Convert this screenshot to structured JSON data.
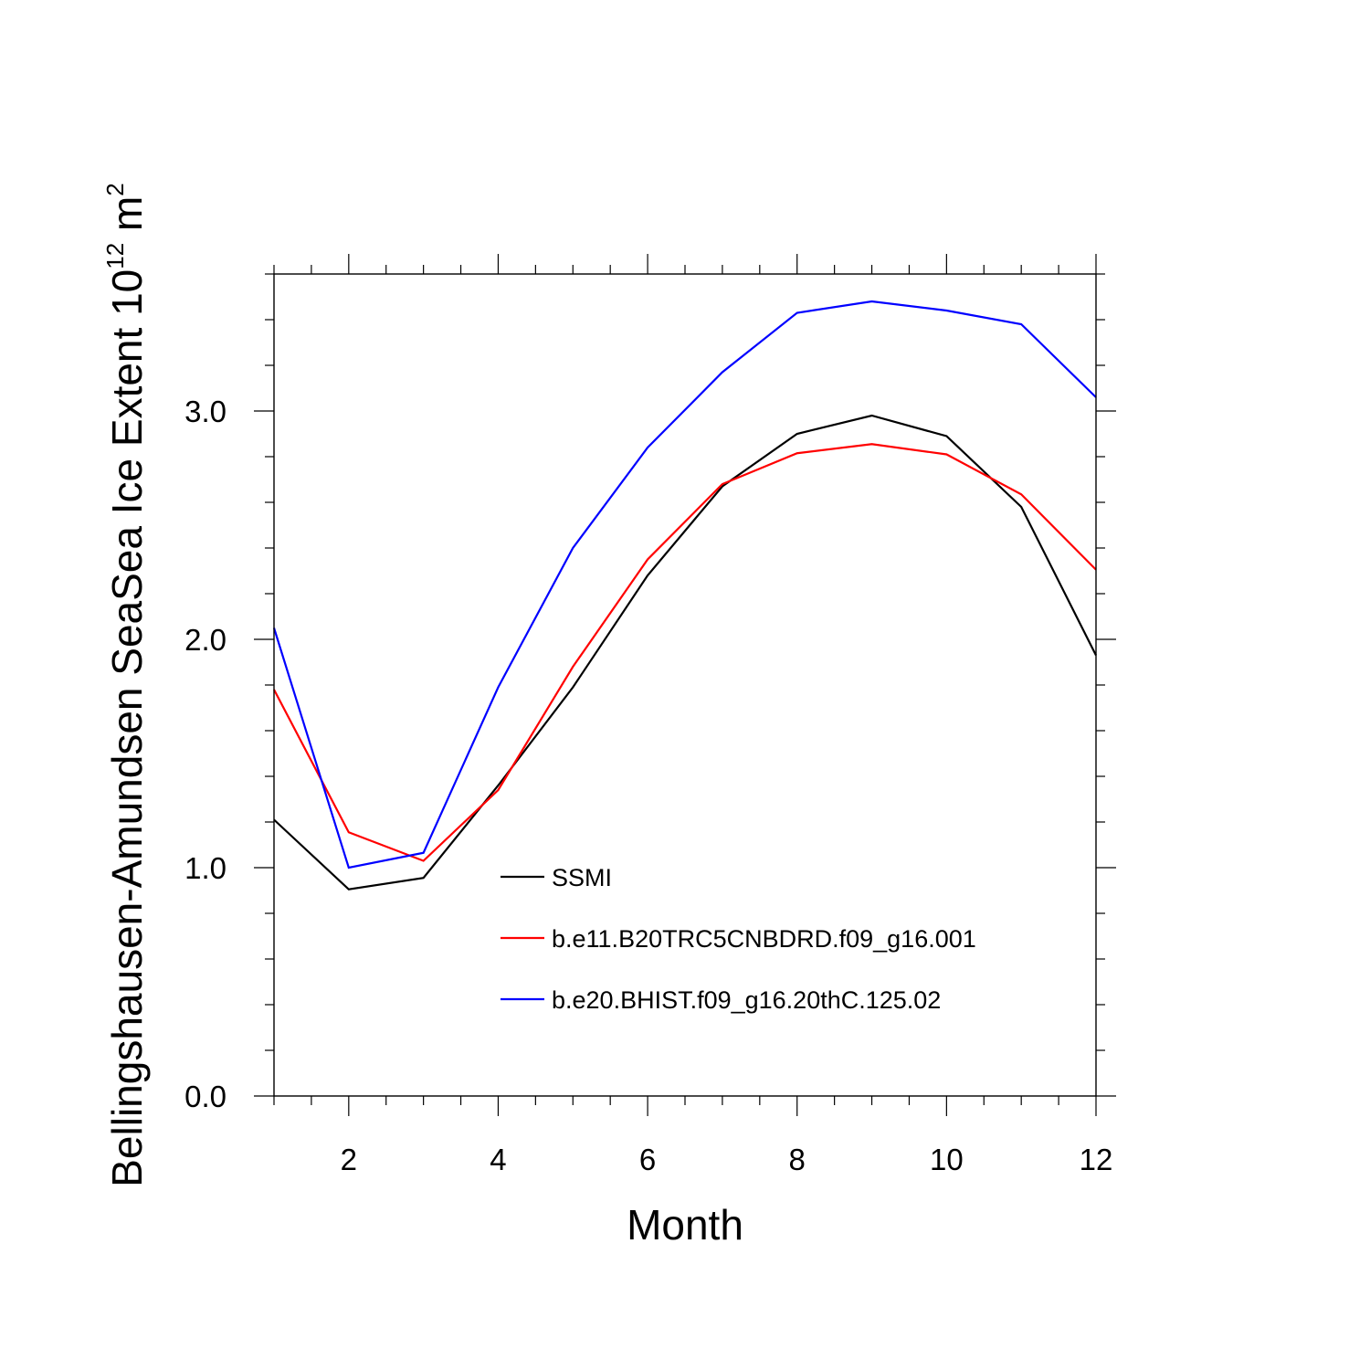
{
  "chart_data": {
    "type": "line",
    "title": "",
    "xlabel": "Month",
    "ylabel": "Bellingshausen-Amundsen SeaSea Ice Extent 10",
    "ylabel_exponent": "12",
    "ylabel_unit": "m",
    "ylabel_unit_exponent": "2",
    "x": [
      1,
      2,
      3,
      4,
      5,
      6,
      7,
      8,
      9,
      10,
      11,
      12
    ],
    "xlim": [
      1,
      12
    ],
    "ylim": [
      0,
      3.6
    ],
    "xticks": [
      2,
      4,
      6,
      8,
      10,
      12
    ],
    "xtick_labels": [
      "2",
      "4",
      "6",
      "8",
      "10",
      "12"
    ],
    "yticks": [
      0,
      1,
      2,
      3
    ],
    "ytick_labels": [
      "0.0",
      "1.0",
      "2.0",
      "3.0"
    ],
    "legend_position": "inside-lower-center",
    "grid": false,
    "series": [
      {
        "name": "SSMI",
        "color": "#000000",
        "values": [
          1.21,
          0.905,
          0.955,
          1.36,
          1.79,
          2.28,
          2.67,
          2.9,
          2.98,
          2.89,
          2.58,
          1.93
        ]
      },
      {
        "name": "b.e11.B20TRC5CNBDRD.f09_g16.001",
        "color": "#ff0000",
        "values": [
          1.78,
          1.155,
          1.03,
          1.34,
          1.88,
          2.35,
          2.68,
          2.815,
          2.855,
          2.81,
          2.635,
          2.305
        ]
      },
      {
        "name": "b.e20.BHIST.f09_g16.20thC.125.02",
        "color": "#0000ff",
        "values": [
          2.05,
          1.0,
          1.065,
          1.79,
          2.4,
          2.84,
          3.17,
          3.43,
          3.48,
          3.44,
          3.38,
          3.06
        ]
      }
    ]
  }
}
